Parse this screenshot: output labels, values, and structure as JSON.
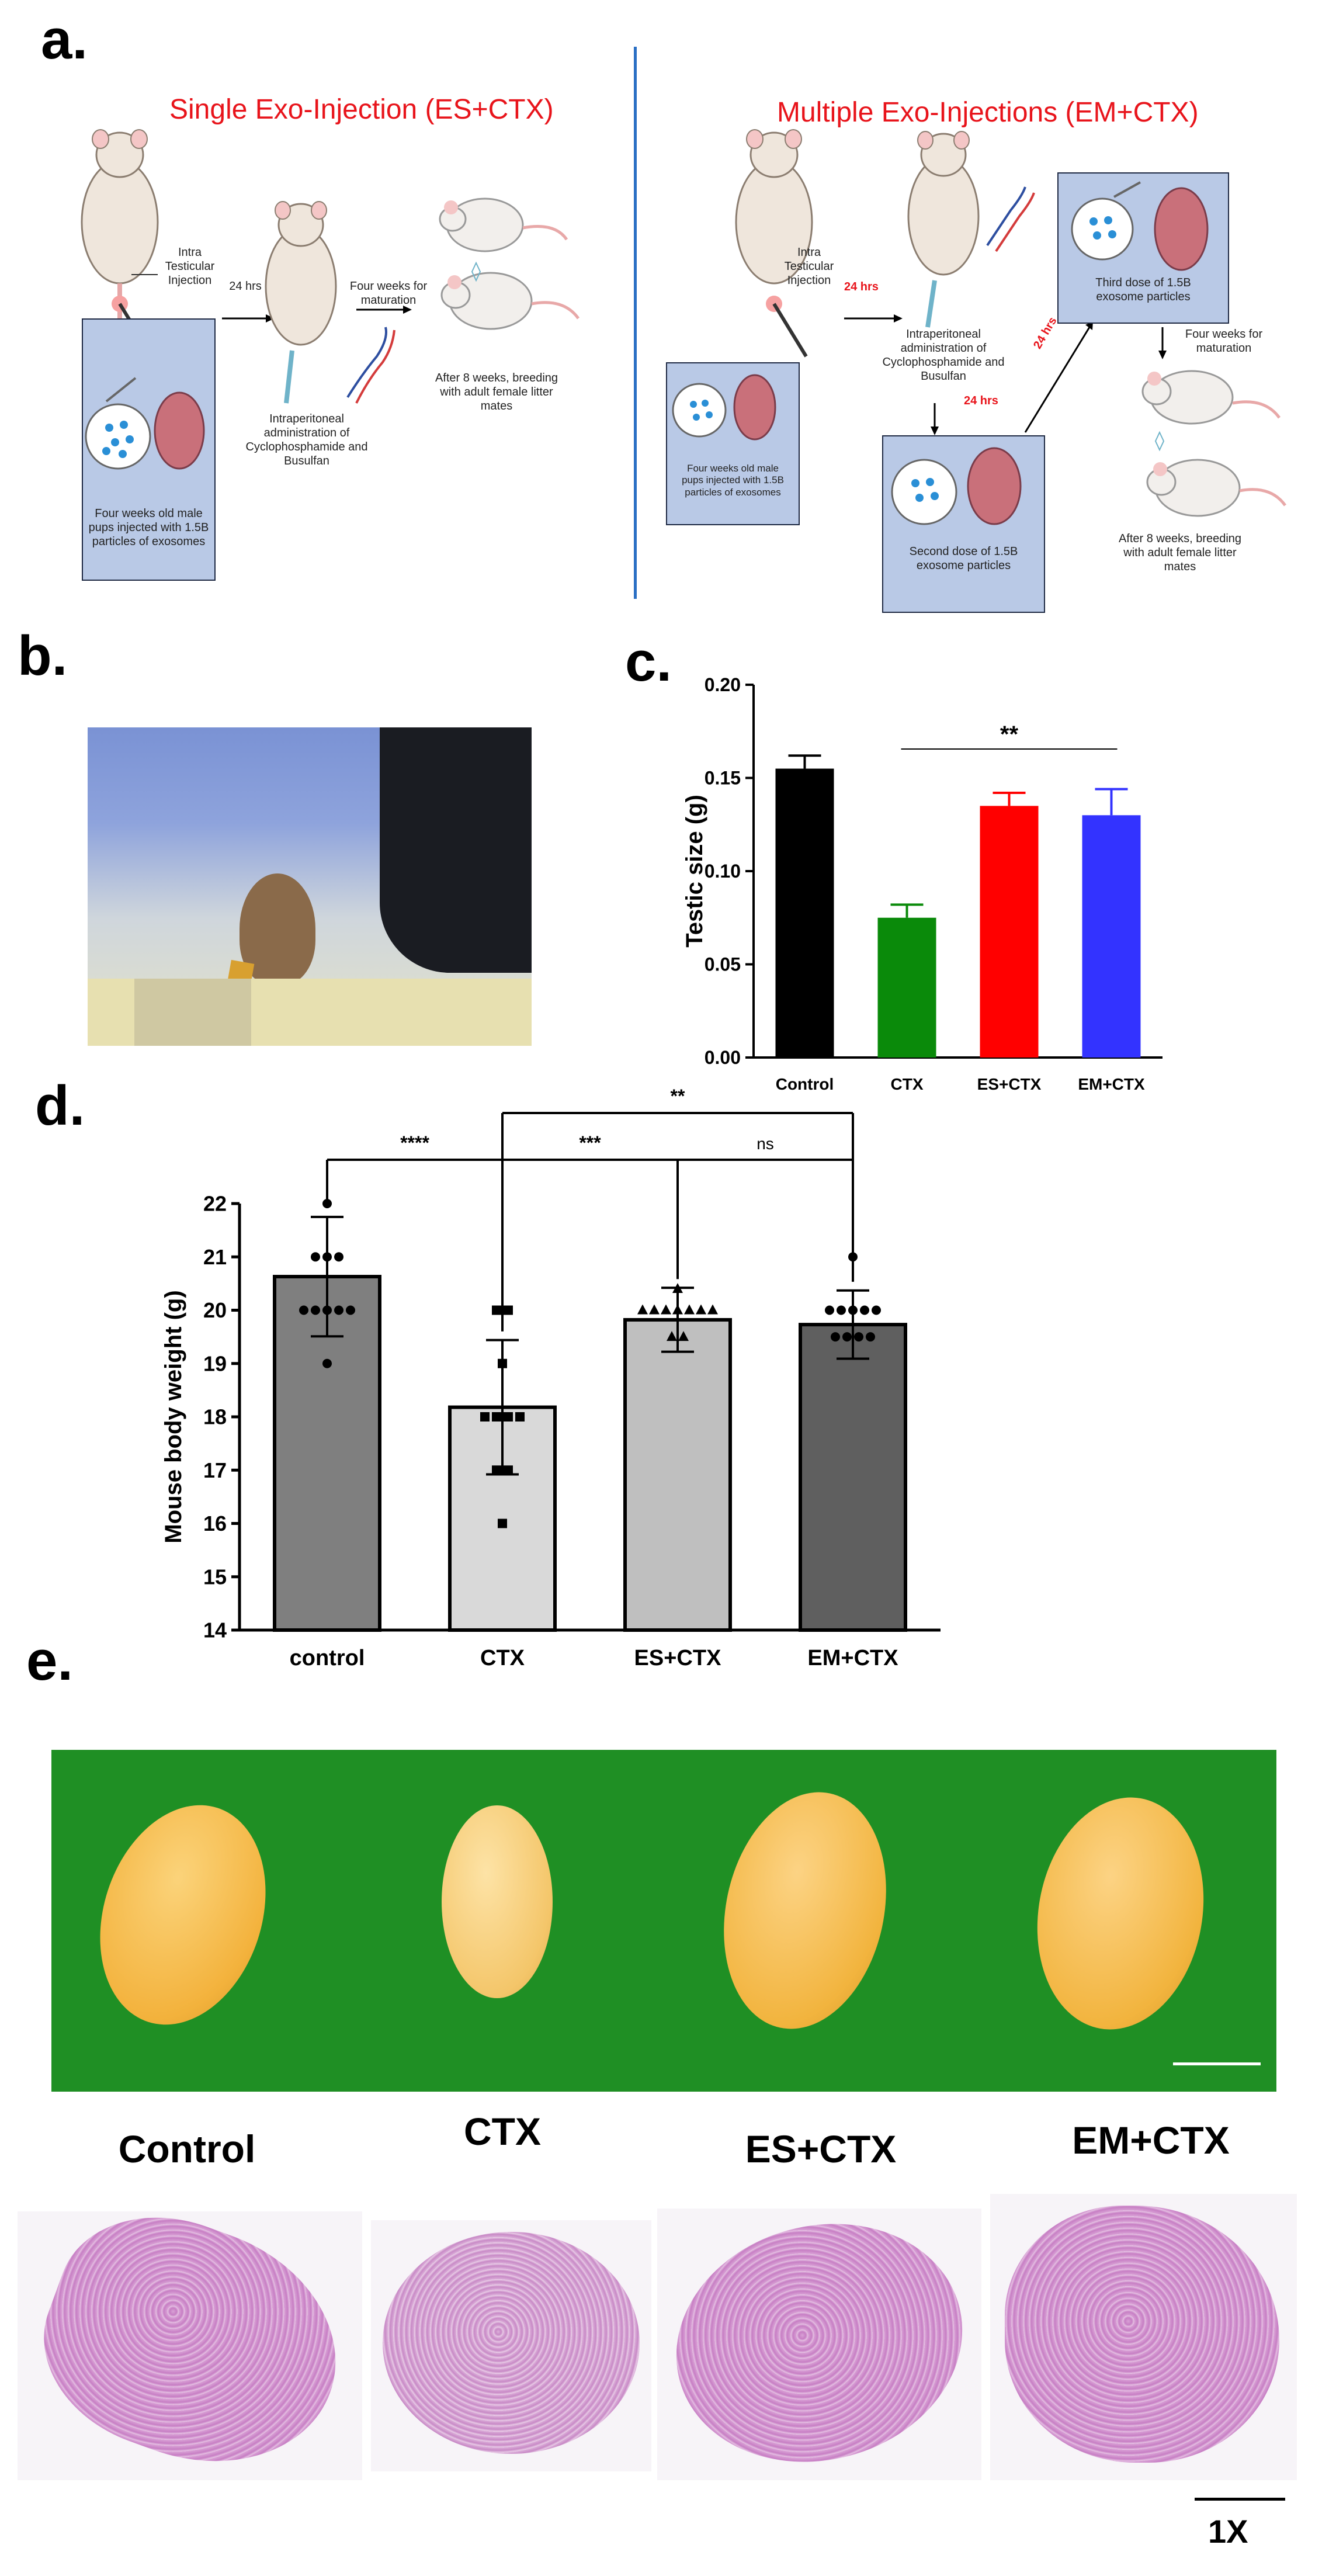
{
  "panel_a": {
    "letter": "a.",
    "left_title": "Single Exo-Injection (ES+CTX)",
    "right_title": "Multiple Exo-Injections (EM+CTX)",
    "left": {
      "intra_label": "Intra\nTesticular\nInjection",
      "hrs1": "24 hrs",
      "maturation": "Four weeks for\nmaturation",
      "ip_label": "Intraperitoneal\nadministration of\nCyclophosphamide and\nBusulfan",
      "breeding": "After 8 weeks, breeding\nwith adult female litter\nmates",
      "box_text": "Four weeks old male\npups injected with 1.5B\nparticles of exosomes"
    },
    "right": {
      "intra_label": "Intra\nTesticular\nInjection",
      "hrs1": "24 hrs",
      "ip_label": "Intraperitoneal\nadministration of\nCyclophosphamide and\nBusulfan",
      "hrs2": "24 hrs",
      "hrs3": "24 hrs",
      "box1_text": "Four weeks old male\npups injected with 1.5B\nparticles of exosomes",
      "box2_text": "Second dose of 1.5B\nexosome particles",
      "box3_text": "Third dose of 1.5B\nexosome particles",
      "maturation": "Four weeks for\nmaturation",
      "breeding": "After 8 weeks, breeding\nwith adult female litter\nmates"
    },
    "colors": {
      "title_red": "#e8141b",
      "box_blue": "#b9c9e6",
      "divider_blue": "#2a6fc4"
    }
  },
  "panel_b": {
    "letter": "b."
  },
  "panel_c": {
    "letter": "c."
  },
  "panel_d": {
    "letter": "d."
  },
  "panel_e": {
    "letter": "e.",
    "labels": [
      "Control",
      "CTX",
      "ES+CTX",
      "EM+CTX"
    ],
    "scale_label": "1X"
  },
  "chart_data": [
    {
      "type": "bar",
      "panel": "c",
      "categories": [
        "Control",
        "CTX",
        "ES+CTX",
        "EM+CTX"
      ],
      "values": [
        0.155,
        0.075,
        0.135,
        0.13
      ],
      "errors": [
        0.007,
        0.007,
        0.007,
        0.014
      ],
      "colors": [
        "#000000",
        "#0a8a0a",
        "#ff0000",
        "#3333ff"
      ],
      "ylabel": "Testic size (g)",
      "ylim": [
        0,
        0.2
      ],
      "yticks": [
        "0.00",
        "0.05",
        "0.10",
        "0.15",
        "0.20"
      ],
      "annotations": [
        {
          "from": 1,
          "to": 3,
          "text": "**"
        }
      ],
      "grid": false
    },
    {
      "type": "bar",
      "panel": "d",
      "categories": [
        "control",
        "CTX",
        "ES+CTX",
        "EM+CTX"
      ],
      "values": [
        20.63,
        18.18,
        19.82,
        19.73
      ],
      "errors": [
        1.12,
        1.26,
        0.6,
        0.64
      ],
      "colors": [
        "#7f7f7f",
        "#d9d9d9",
        "#bfbfbf",
        "#5f5f5f"
      ],
      "points": [
        [
          22,
          21,
          21,
          21,
          20,
          20,
          20,
          20,
          20,
          19
        ],
        [
          20,
          20,
          19,
          18,
          18,
          18,
          18,
          17,
          17,
          16
        ],
        [
          20.4,
          20,
          20,
          20,
          20,
          20,
          20,
          20,
          19.5,
          19.5
        ],
        [
          21,
          20,
          20,
          20,
          20,
          20,
          19.5,
          19.5,
          19.5,
          19.5
        ]
      ],
      "markers": [
        "circle",
        "square",
        "triangle",
        "circle"
      ],
      "ylabel": "Mouse body weight (g)",
      "ylim": [
        14,
        22
      ],
      "yticks": [
        "14",
        "15",
        "16",
        "17",
        "18",
        "19",
        "20",
        "21",
        "22"
      ],
      "annotations": [
        {
          "from": 0,
          "to": 1,
          "text": "****"
        },
        {
          "from": 1,
          "to": 2,
          "text": "***"
        },
        {
          "from": 2,
          "to": 3,
          "text": "ns"
        },
        {
          "from": 1,
          "to": 3,
          "text": "**"
        }
      ],
      "grid": false
    }
  ]
}
